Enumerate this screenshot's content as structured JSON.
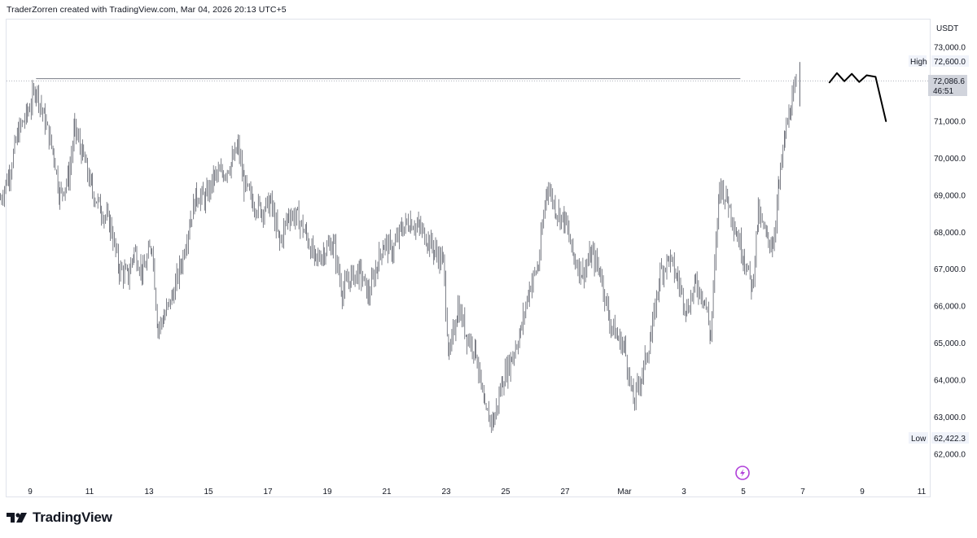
{
  "attribution": "TraderZorren created with TradingView.com, Mar 04, 2026 20:13 UTC+5",
  "brand": {
    "name": "TradingView"
  },
  "chart_data": {
    "type": "candlestick",
    "currency": "USDT",
    "ylim": [
      61500,
      73400
    ],
    "y_ticks": [
      "73,000.0",
      "71,000.0",
      "70,000.0",
      "69,000.0",
      "68,000.0",
      "67,000.0",
      "66,000.0",
      "65,000.0",
      "64,000.0",
      "63,000.0",
      "62,000.0"
    ],
    "y_tick_values": [
      73000,
      71000,
      70000,
      69000,
      68000,
      67000,
      66000,
      65000,
      64000,
      63000,
      62000
    ],
    "x_ticks": [
      "9",
      "11",
      "13",
      "15",
      "17",
      "19",
      "21",
      "23",
      "25",
      "27",
      "Mar",
      "3",
      "5",
      "7",
      "9",
      "11"
    ],
    "x_tick_days": [
      9,
      11,
      13,
      15,
      17,
      19,
      21,
      23,
      25,
      27,
      29,
      31,
      33,
      35,
      37,
      39
    ],
    "high": {
      "label": "High",
      "value": "72,600.0",
      "y": 72600
    },
    "low": {
      "label": "Low",
      "value": "62,422.3",
      "y": 62422.3
    },
    "last_price": {
      "value": "72,086.6",
      "countdown": "46:51",
      "y": 72086.6
    },
    "horizontal_line": {
      "y": 72150,
      "from_day": 9.2,
      "to_day": 32.9
    },
    "price_path": [
      [
        8.0,
        68900
      ],
      [
        8.3,
        69600
      ],
      [
        8.6,
        70700
      ],
      [
        8.9,
        71200
      ],
      [
        9.2,
        71900
      ],
      [
        9.5,
        71000
      ],
      [
        9.8,
        70100
      ],
      [
        10.0,
        69000
      ],
      [
        10.3,
        69500
      ],
      [
        10.5,
        70800
      ],
      [
        10.8,
        70000
      ],
      [
        11.1,
        69100
      ],
      [
        11.4,
        68600
      ],
      [
        11.7,
        68200
      ],
      [
        12.0,
        67000
      ],
      [
        12.3,
        66800
      ],
      [
        12.5,
        67500
      ],
      [
        12.8,
        66900
      ],
      [
        13.1,
        67700
      ],
      [
        13.3,
        65400
      ],
      [
        13.5,
        65700
      ],
      [
        13.8,
        66300
      ],
      [
        14.1,
        67200
      ],
      [
        14.4,
        68400
      ],
      [
        14.6,
        69000
      ],
      [
        14.9,
        68900
      ],
      [
        15.2,
        69500
      ],
      [
        15.5,
        69600
      ],
      [
        15.8,
        69900
      ],
      [
        16.0,
        70300
      ],
      [
        16.2,
        69300
      ],
      [
        16.5,
        68800
      ],
      [
        16.8,
        68600
      ],
      [
        17.1,
        68800
      ],
      [
        17.4,
        67700
      ],
      [
        17.7,
        68500
      ],
      [
        18.0,
        68400
      ],
      [
        18.3,
        67900
      ],
      [
        18.6,
        67200
      ],
      [
        18.9,
        67500
      ],
      [
        19.2,
        67700
      ],
      [
        19.5,
        66400
      ],
      [
        19.8,
        66800
      ],
      [
        20.1,
        66900
      ],
      [
        20.4,
        66300
      ],
      [
        20.7,
        67200
      ],
      [
        20.9,
        67700
      ],
      [
        21.2,
        67500
      ],
      [
        21.5,
        68100
      ],
      [
        21.8,
        68300
      ],
      [
        22.1,
        68100
      ],
      [
        22.4,
        67800
      ],
      [
        22.6,
        67500
      ],
      [
        22.9,
        67200
      ],
      [
        23.1,
        64600
      ],
      [
        23.4,
        66000
      ],
      [
        23.7,
        65200
      ],
      [
        24.0,
        64800
      ],
      [
        24.3,
        63100
      ],
      [
        24.6,
        62900
      ],
      [
        24.9,
        64000
      ],
      [
        25.2,
        64600
      ],
      [
        25.5,
        65300
      ],
      [
        25.8,
        66500
      ],
      [
        26.1,
        67100
      ],
      [
        26.4,
        69300
      ],
      [
        26.7,
        68600
      ],
      [
        27.0,
        68300
      ],
      [
        27.3,
        67300
      ],
      [
        27.6,
        66900
      ],
      [
        27.9,
        67400
      ],
      [
        28.2,
        66900
      ],
      [
        28.5,
        65600
      ],
      [
        28.8,
        65100
      ],
      [
        29.0,
        64900
      ],
      [
        29.3,
        63400
      ],
      [
        29.6,
        64200
      ],
      [
        29.9,
        65200
      ],
      [
        30.2,
        66900
      ],
      [
        30.5,
        67300
      ],
      [
        30.8,
        66700
      ],
      [
        31.1,
        65900
      ],
      [
        31.4,
        66600
      ],
      [
        31.7,
        66200
      ],
      [
        31.9,
        65200
      ],
      [
        32.2,
        69300
      ],
      [
        32.5,
        68800
      ],
      [
        32.8,
        67900
      ],
      [
        33.0,
        67400
      ],
      [
        33.3,
        66500
      ],
      [
        33.5,
        68500
      ],
      [
        33.8,
        67800
      ],
      [
        34.0,
        67700
      ],
      [
        34.2,
        69300
      ],
      [
        34.4,
        70600
      ],
      [
        34.6,
        71400
      ],
      [
        34.8,
        72000
      ]
    ],
    "projection": [
      [
        35.9,
        72050
      ],
      [
        36.15,
        72300
      ],
      [
        36.4,
        72080
      ],
      [
        36.65,
        72280
      ],
      [
        36.9,
        72060
      ],
      [
        37.15,
        72240
      ],
      [
        37.45,
        72200
      ],
      [
        37.8,
        71000
      ]
    ]
  }
}
